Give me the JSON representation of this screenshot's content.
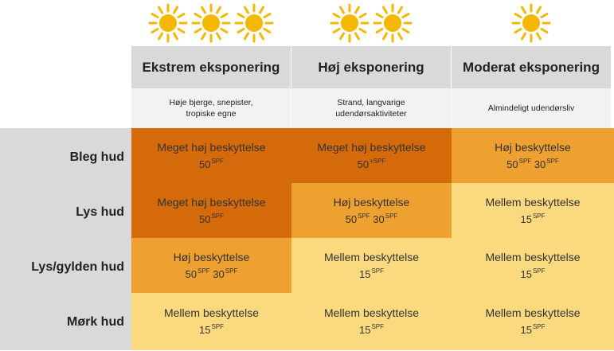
{
  "columns": [
    {
      "title": "Ekstrem eksponering",
      "desc": "Høje bjerge, snepister,\ntropiske egne",
      "suns": 3
    },
    {
      "title": "Høj eksponering",
      "desc": "Strand, langvarige\nudendørsaktiviteter",
      "suns": 2
    },
    {
      "title": "Moderat eksponering",
      "desc": "Almindeligt udendørsliv",
      "suns": 1
    }
  ],
  "rows": [
    {
      "label": "Bleg hud",
      "cells": [
        {
          "text": "Meget høj beskyttelse",
          "values": [
            "50"
          ],
          "unit": "SPF",
          "plus": "",
          "level": "ekstra"
        },
        {
          "text": "Meget høj beskyttelse",
          "values": [
            "50"
          ],
          "unit": "SPF",
          "plus": "+",
          "level": "ekstra"
        },
        {
          "text": "Høj beskyttelse",
          "values": [
            "50",
            "30"
          ],
          "unit": "SPF",
          "plus": "",
          "level": "hoy"
        }
      ]
    },
    {
      "label": "Lys hud",
      "cells": [
        {
          "text": "Meget høj beskyttelse",
          "values": [
            "50"
          ],
          "unit": "SPF",
          "plus": "",
          "level": "ekstra"
        },
        {
          "text": "Høj beskyttelse",
          "values": [
            "50",
            "30"
          ],
          "unit": "SPF",
          "plus": "",
          "level": "hoy"
        },
        {
          "text": "Mellem beskyttelse",
          "values": [
            "15"
          ],
          "unit": "SPF",
          "plus": "",
          "level": "mellom"
        }
      ]
    },
    {
      "label": "Lys/gylden hud",
      "cells": [
        {
          "text": "Høj beskyttelse",
          "values": [
            "50",
            "30"
          ],
          "unit": "SPF",
          "plus": "",
          "level": "hoy"
        },
        {
          "text": "Mellem beskyttelse",
          "values": [
            "15"
          ],
          "unit": "SPF",
          "plus": "",
          "level": "mellom"
        },
        {
          "text": "Mellem beskyttelse",
          "values": [
            "15"
          ],
          "unit": "SPF",
          "plus": "",
          "level": "mellom"
        }
      ]
    },
    {
      "label": "Mørk hud",
      "cells": [
        {
          "text": "Mellem beskyttelse",
          "values": [
            "15"
          ],
          "unit": "SPF",
          "plus": "",
          "level": "mellom"
        },
        {
          "text": "Mellem beskyttelse",
          "values": [
            "15"
          ],
          "unit": "SPF",
          "plus": "",
          "level": "mellom"
        },
        {
          "text": "Mellem beskyttelse",
          "values": [
            "15"
          ],
          "unit": "SPF",
          "plus": "",
          "level": "mellom"
        }
      ]
    }
  ],
  "colors": {
    "ekstra": "#d46a0a",
    "hoy": "#eea030",
    "mellom": "#fbd97e",
    "sun": "#f5b800",
    "header_bg": "#d9d9d9",
    "desc_bg": "#f2f2f2"
  },
  "icons": {
    "sun": "sun-icon"
  }
}
